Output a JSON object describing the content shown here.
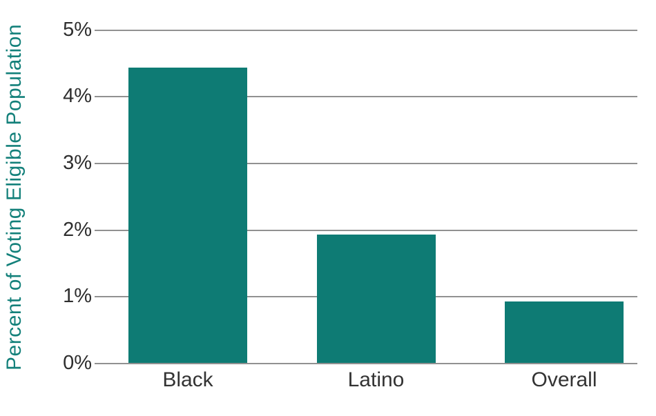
{
  "chart_data": {
    "type": "bar",
    "categories": [
      "Black",
      "Latino",
      "Overall"
    ],
    "values": [
      4.43,
      1.92,
      0.92
    ],
    "title": "",
    "xlabel": "",
    "ylabel": "Percent of Voting Eligible Population",
    "ylim": [
      0,
      5
    ],
    "yticks": [
      "0%",
      "1%",
      "2%",
      "3%",
      "4%",
      "5%"
    ],
    "ytick_values": [
      0,
      1,
      2,
      3,
      4,
      5
    ],
    "grid": true,
    "legend": false,
    "colors": {
      "bar": "#0e7b74",
      "axis_title": "#13807a",
      "tick_label": "#2e2e2e",
      "gridline": "#919191",
      "background": "#ffffff"
    }
  }
}
